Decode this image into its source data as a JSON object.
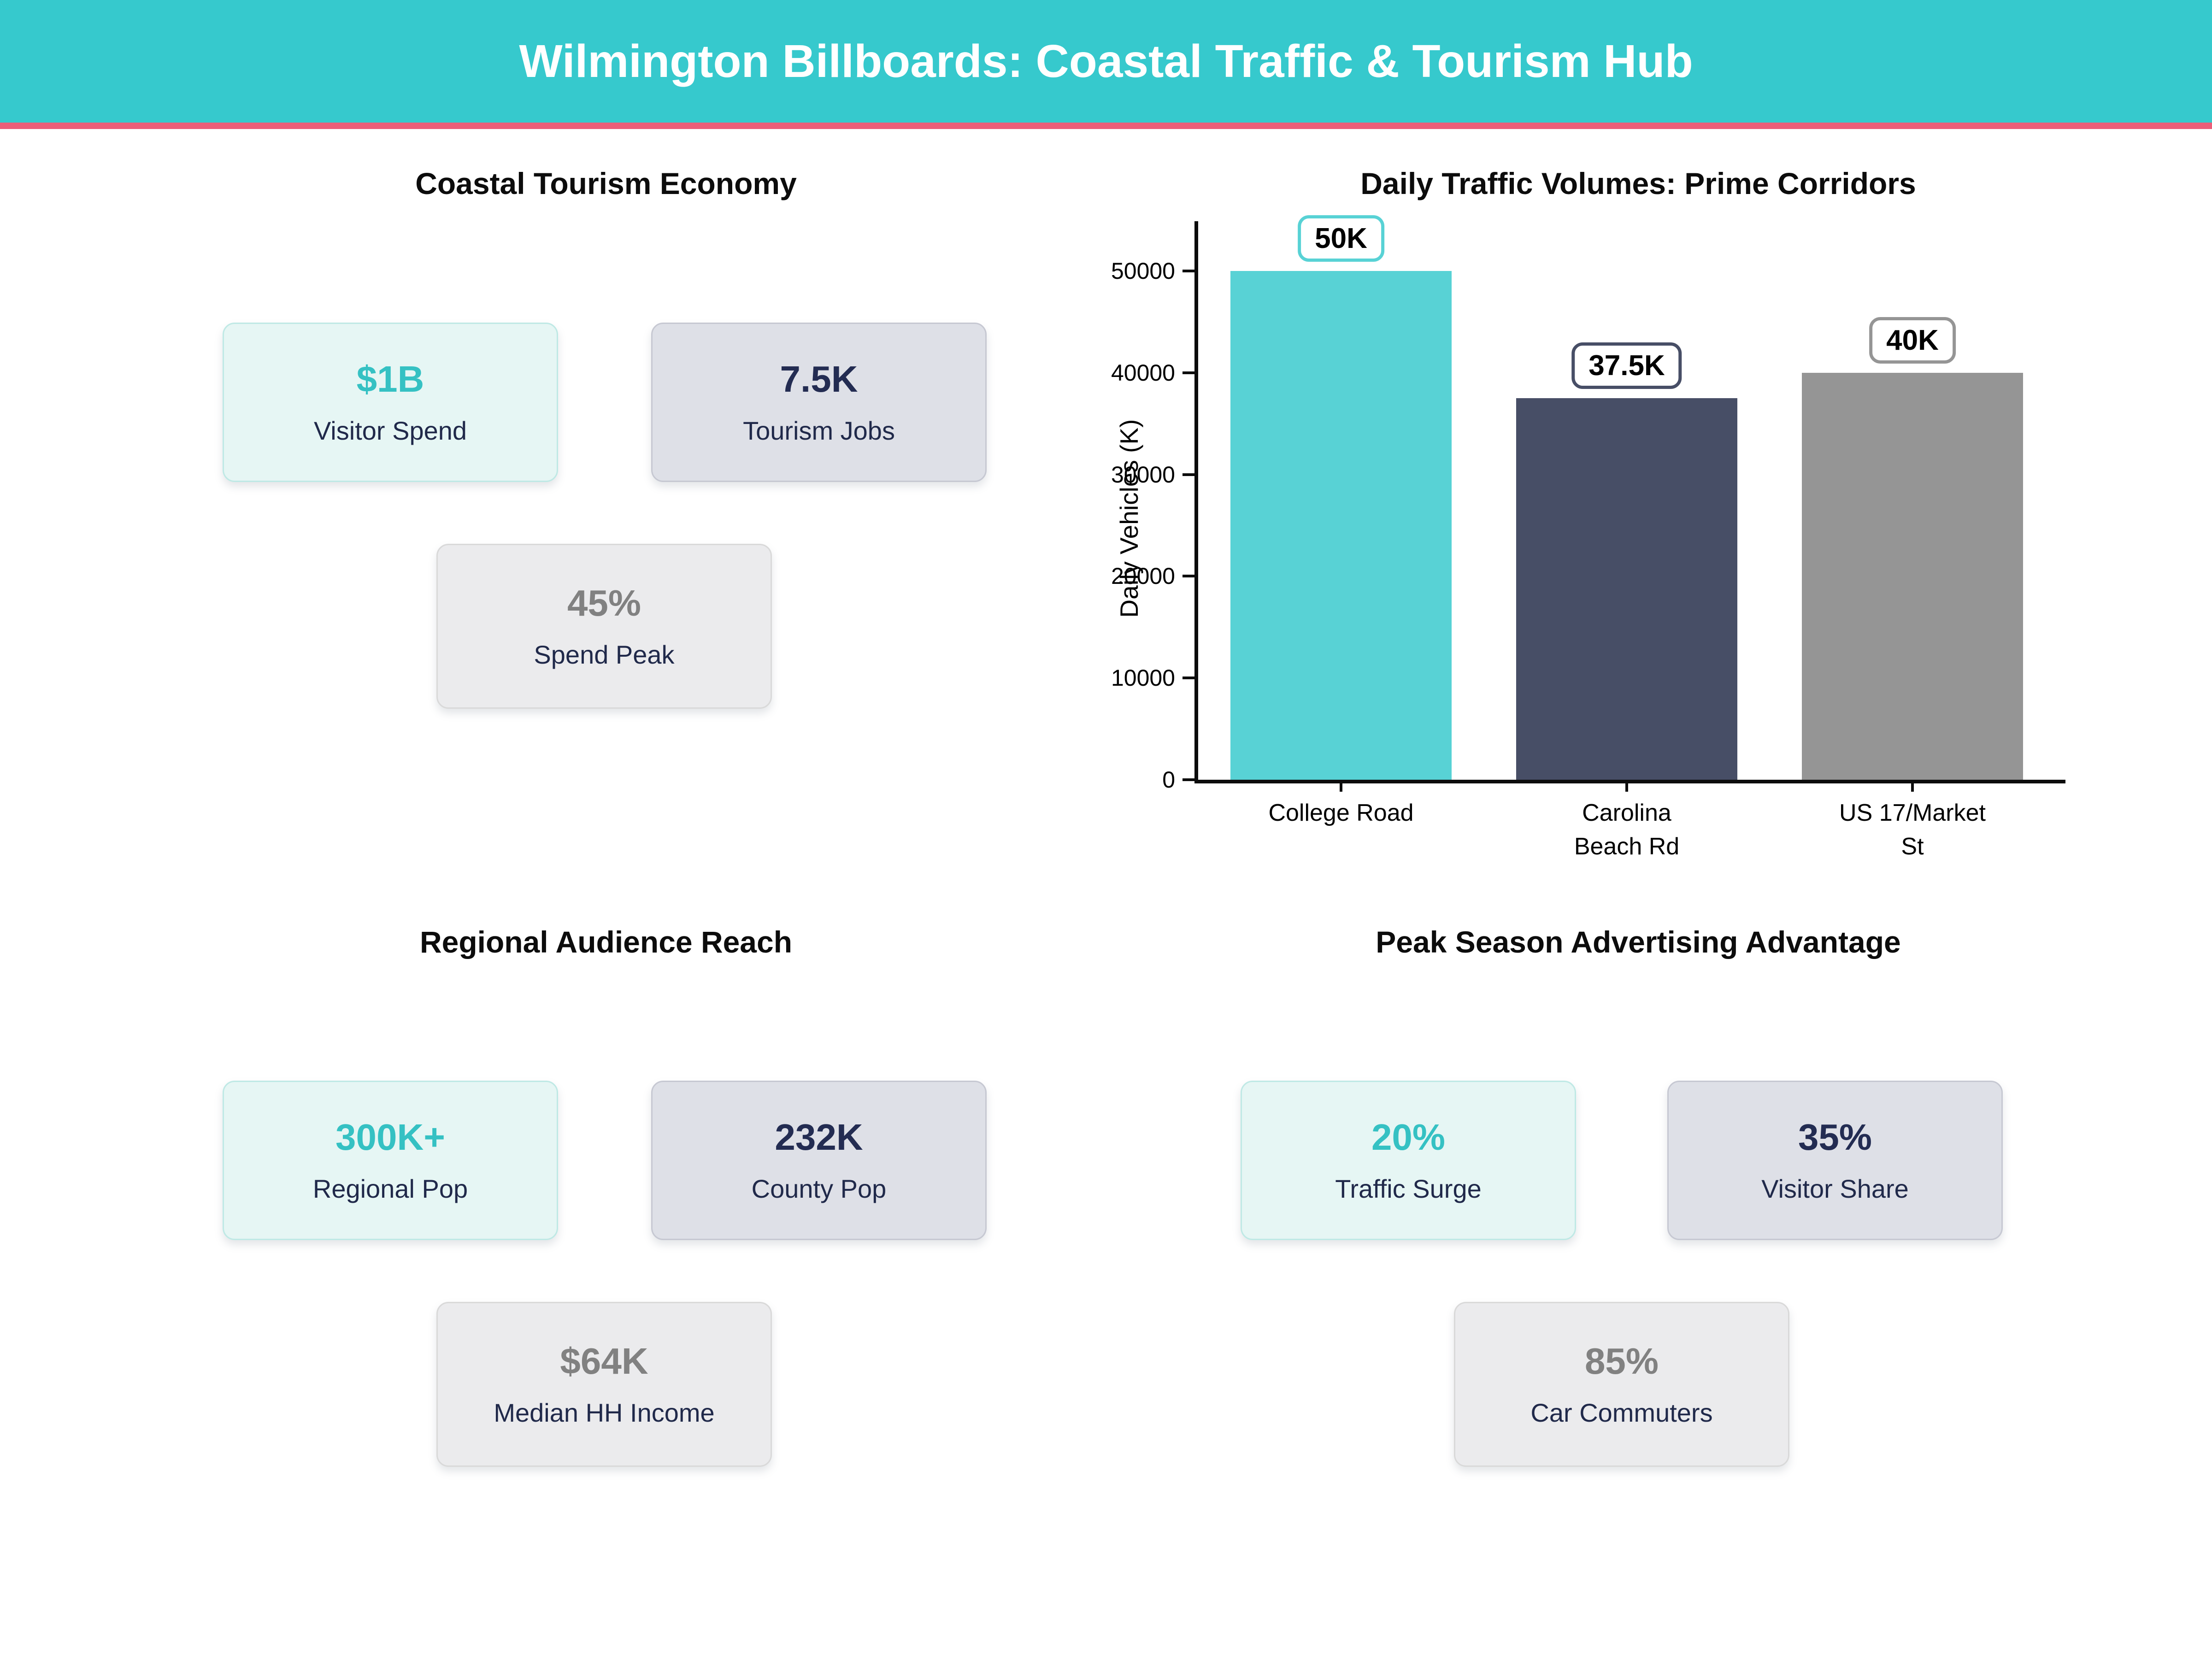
{
  "header": {
    "title": "Wilmington Billboards: Coastal Traffic & Tourism Hub"
  },
  "palette": {
    "header_bg": "#36c9cd",
    "header_accent": "#ec5e79",
    "teal_text": "#35c1c3",
    "navy_text": "#232c52",
    "gray_text": "#818181",
    "label_text": "#20294a",
    "mint_card_bg": "#e6f6f4",
    "mint_card_border": "#bfe9e5",
    "lavender_card_bg": "#dee0e7",
    "lavender_card_border": "#c6c8d2",
    "gray_card_bg": "#ebebed",
    "gray_card_border": "#d9d9d9"
  },
  "sections": {
    "tourism": {
      "title": "Coastal Tourism Economy",
      "cards": [
        {
          "value": "$1B",
          "label": "Visitor Spend"
        },
        {
          "value": "7.5K",
          "label": "Tourism Jobs"
        },
        {
          "value": "45%",
          "label": "Spend Peak"
        }
      ]
    },
    "audience": {
      "title": "Regional Audience Reach",
      "cards": [
        {
          "value": "300K+",
          "label": "Regional Pop"
        },
        {
          "value": "232K",
          "label": "County Pop"
        },
        {
          "value": "$64K",
          "label": "Median HH Income"
        }
      ]
    },
    "peak": {
      "title": "Peak Season Advertising Advantage",
      "cards": [
        {
          "value": "20%",
          "label": "Traffic Surge"
        },
        {
          "value": "35%",
          "label": "Visitor Share"
        },
        {
          "value": "85%",
          "label": "Car Commuters"
        }
      ]
    }
  },
  "chart_data": {
    "type": "bar",
    "title": "Daily Traffic Volumes: Prime Corridors",
    "categories": [
      "College Road",
      "Carolina Beach Rd",
      "US 17/Market St"
    ],
    "category_lines": [
      [
        "College Road"
      ],
      [
        "Carolina",
        "Beach Rd"
      ],
      [
        "US 17/Market",
        "St"
      ]
    ],
    "values": [
      50000,
      37500,
      40000
    ],
    "bar_labels": [
      "50K",
      "37.5K",
      "40K"
    ],
    "bar_colors": [
      "#58d2d5",
      "#474e66",
      "#959595"
    ],
    "xlabel": "",
    "ylabel": "Daily Vehicles (K)",
    "ylim": [
      0,
      50000
    ],
    "yticks": [
      0,
      10000,
      20000,
      30000,
      40000,
      50000
    ],
    "grid": false,
    "legend_position": null
  }
}
